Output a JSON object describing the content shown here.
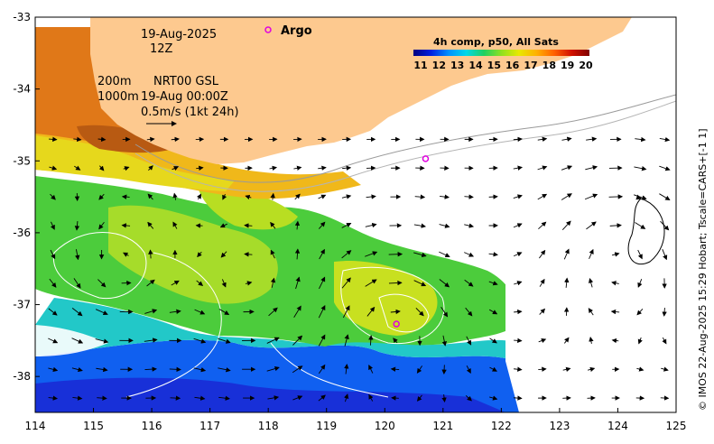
{
  "map": {
    "date_label": "19-Aug-2025",
    "time_label": "12Z",
    "depth_label_1": "200m",
    "depth_label_2": "1000m",
    "source_label": "NRT00 GSL",
    "source_time_label": "19-Aug 00:00Z",
    "velocity_scale_label": "0.5m/s (1kt 24h)",
    "argo_legend_label": "Argo",
    "colorbar_title": "4h comp, p50, All Sats",
    "colorbar_ticks": [
      "11",
      "12",
      "13",
      "14",
      "15",
      "16",
      "17",
      "18",
      "19",
      "20"
    ],
    "colorbar_colors": [
      "#00007f",
      "#0020e0",
      "#0090ff",
      "#00d8e8",
      "#20d060",
      "#90e020",
      "#e8e800",
      "#ffb000",
      "#ff6000",
      "#d01000",
      "#7f0000"
    ],
    "x_ticks": [
      "114",
      "115",
      "116",
      "117",
      "118",
      "119",
      "120",
      "121",
      "122",
      "123",
      "124",
      "125"
    ],
    "y_ticks": [
      "-33",
      "-34",
      "-35",
      "-36",
      "-37",
      "-38"
    ],
    "x_range": [
      114,
      125
    ],
    "y_range": [
      -38.5,
      -33
    ],
    "side_caption": "© IMOS 22-Aug-2025 15:29 Hobart; Tscale=CARS+[-1 1]",
    "land_color": "#fdc98f",
    "argo_color": "#e000e0",
    "argo_floats": [
      {
        "lon": 120.7,
        "lat": -34.97
      },
      {
        "lon": 120.2,
        "lat": -37.27
      }
    ]
  }
}
